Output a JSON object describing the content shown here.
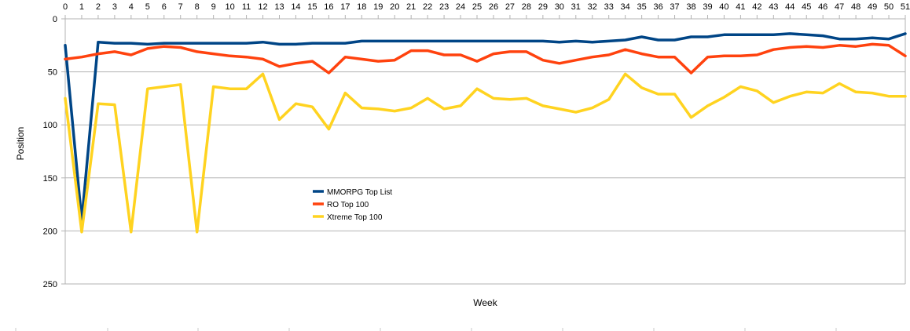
{
  "chart_data": {
    "type": "line",
    "xlabel": "Week",
    "ylabel": "Position",
    "x": [
      0,
      1,
      2,
      3,
      4,
      5,
      6,
      7,
      8,
      9,
      10,
      11,
      12,
      13,
      14,
      15,
      16,
      17,
      18,
      19,
      20,
      21,
      22,
      23,
      24,
      25,
      26,
      27,
      28,
      29,
      30,
      31,
      32,
      33,
      34,
      35,
      36,
      37,
      38,
      39,
      40,
      41,
      42,
      43,
      44,
      45,
      46,
      47,
      48,
      49,
      50,
      51
    ],
    "xlim": [
      0,
      51
    ],
    "ylim": [
      0,
      250
    ],
    "y_inverted": true,
    "x_axis_position": "top",
    "y_ticks": [
      0,
      50,
      100,
      150,
      200,
      250
    ],
    "grid": true,
    "legend_position": "center-left",
    "series": [
      {
        "name": "MMORPG Top List",
        "color": "#004586",
        "values": [
          25,
          190,
          22,
          23,
          23,
          24,
          23,
          23,
          23,
          23,
          23,
          23,
          22,
          24,
          24,
          23,
          23,
          23,
          21,
          21,
          21,
          21,
          21,
          21,
          21,
          21,
          21,
          21,
          21,
          21,
          22,
          21,
          22,
          21,
          20,
          17,
          20,
          20,
          17,
          17,
          15,
          15,
          15,
          15,
          14,
          15,
          16,
          19,
          19,
          18,
          19,
          14
        ]
      },
      {
        "name": "RO Top 100",
        "color": "#ff420e",
        "values": [
          38,
          36,
          33,
          31,
          34,
          28,
          26,
          27,
          31,
          33,
          35,
          36,
          38,
          45,
          42,
          40,
          51,
          36,
          38,
          40,
          39,
          30,
          30,
          34,
          34,
          40,
          33,
          31,
          31,
          39,
          42,
          39,
          36,
          34,
          29,
          33,
          36,
          36,
          51,
          36,
          35,
          35,
          34,
          29,
          27,
          26,
          27,
          25,
          26,
          24,
          25,
          35
        ]
      },
      {
        "name": "Xtreme Top 100",
        "color": "#ffd320",
        "values": [
          75,
          201,
          80,
          81,
          201,
          66,
          64,
          62,
          201,
          64,
          66,
          66,
          52,
          95,
          80,
          83,
          104,
          70,
          84,
          85,
          87,
          84,
          75,
          85,
          82,
          66,
          75,
          76,
          75,
          82,
          85,
          88,
          84,
          76,
          52,
          65,
          71,
          71,
          93,
          82,
          74,
          64,
          68,
          79,
          73,
          69,
          70,
          61,
          69,
          70,
          73,
          73
        ]
      }
    ]
  }
}
